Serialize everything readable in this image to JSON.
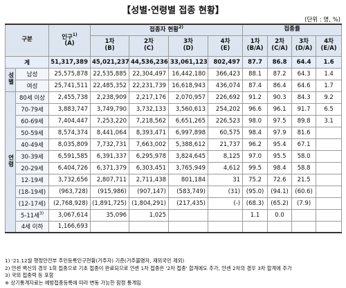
{
  "header": {
    "title": "【성별·연령별 접종 현황】",
    "unit": "(단위 : 명, %)"
  },
  "table": {
    "columns": {
      "category": "구분",
      "population": {
        "text": "인구",
        "note": "1)",
        "sub": "(A)"
      },
      "vaccinated": {
        "text": "접종자 현황",
        "note": "2)"
      },
      "rate": "접종률",
      "sub": [
        "1차 (B)",
        "2차 (C)",
        "3차 (D)",
        "4차 (E)",
        "1차 (B/A)",
        "2차 (C/A)",
        "3차 (D/A)",
        "4차 (E/A)"
      ]
    },
    "total": {
      "label": "계",
      "cells": [
        "51,317,389",
        "45,021,237",
        "44,536,236",
        "33,061,123",
        "802,497",
        "87.7",
        "86.8",
        "64.4",
        "1.6"
      ]
    },
    "groups": [
      {
        "label": "성별",
        "rows": [
          {
            "label": "남성",
            "cells": [
              "25,575,878",
              "22,535,885",
              "22,304,497",
              "16,442,180",
              "366,423",
              "88.1",
              "87.2",
              "64.3",
              "1.4"
            ]
          },
          {
            "label": "여성",
            "cells": [
              "25,741,511",
              "22,485,352",
              "22,231,739",
              "16,618,943",
              "436,074",
              "87.4",
              "86.4",
              "64.6",
              "1.7"
            ]
          }
        ]
      },
      {
        "label": "연령",
        "rows": [
          {
            "label": "80세 이상",
            "cells": [
              "2,455,738",
              "2,238,909",
              "2,217,176",
              "2,070,957",
              "226,692",
              "91.2",
              "90.3",
              "84.3",
              "9.2"
            ]
          },
          {
            "label": "70-79세",
            "cells": [
              "3,883,747",
              "3,749,790",
              "3,732,133",
              "3,560,613",
              "254,202",
              "96.6",
              "96.1",
              "91.7",
              "6.5"
            ]
          },
          {
            "label": "60-69세",
            "cells": [
              "7,404,447",
              "7,253,220",
              "7,218,562",
              "6,651,265",
              "226,523",
              "98.0",
              "97.5",
              "89.8",
              "3.1"
            ]
          },
          {
            "label": "50-59세",
            "cells": [
              "8,574,374",
              "8,441,064",
              "8,393,471",
              "6,997,898",
              "60,575",
              "98.4",
              "97.9",
              "81.6",
              null
            ]
          },
          {
            "label": "40-49세",
            "cells": [
              "8,035,809",
              "7,732,731",
              "7,663,002",
              "5,388,612",
              "21,737",
              "96.2",
              "95.4",
              "67.1",
              null
            ]
          },
          {
            "label": "30-39세",
            "cells": [
              "6,591,585",
              "6,391,337",
              "6,295,978",
              "3,824,645",
              "8,125",
              "97.0",
              "95.5",
              "58.0",
              null
            ]
          },
          {
            "label": "20-29세",
            "cells": [
              "6,404,726",
              "6,371,379",
              "6,303,451",
              "3,765,949",
              "4,612",
              "99.5",
              "98.4",
              "58.8",
              null
            ]
          },
          {
            "label": "12-19세",
            "cells": [
              "3,732,656",
              "2,807,711",
              "2,711,438",
              "801,184",
              "31",
              "75.2",
              "72.6",
              "21.5",
              null
            ]
          },
          {
            "label": "(18-19세)",
            "cells": [
              "(963,728)",
              "(915,986)",
              "(907,147)",
              "(583,749)",
              "(31)",
              "(95.0)",
              "(94.1)",
              "(60.6)",
              null
            ]
          },
          {
            "label": "(12-17세)",
            "cells": [
              "(2,768,928)",
              "(1,891,725)",
              "(1,804,291)",
              "(217,435)",
              "(-)",
              "(68.3)",
              "(65.2)",
              "(7.9)",
              null
            ]
          },
          {
            "label": "5-11세",
            "note": "3)",
            "cells": [
              "3,067,614",
              "35,096",
              "1,025",
              null,
              null,
              "1.1",
              "0.0",
              null,
              null
            ]
          },
          {
            "label": "4세 이하",
            "cells": [
              "1,166,693",
              null,
              null,
              null,
              null,
              null,
              null,
              null,
              null
            ]
          }
        ]
      }
    ]
  },
  "footnotes": [
    "1) '21.12월 행정안전부 주민등록인구현황(거주자) 기준(거주불명자, 재외국민 제외)",
    "2) 얀센 백신의 경우 1회 접종으로 기초 접종이 완료되므로 얀센 1차 접종은 '2차 접종' 합계에도 추가, 얀센 2차의 경우 3차 합계에 추가",
    "3) 국외 접종력 등 포함",
    "※ 상기통계자료는 예방접종등록에 따라 변동 가능한 잠정 통계임"
  ]
}
